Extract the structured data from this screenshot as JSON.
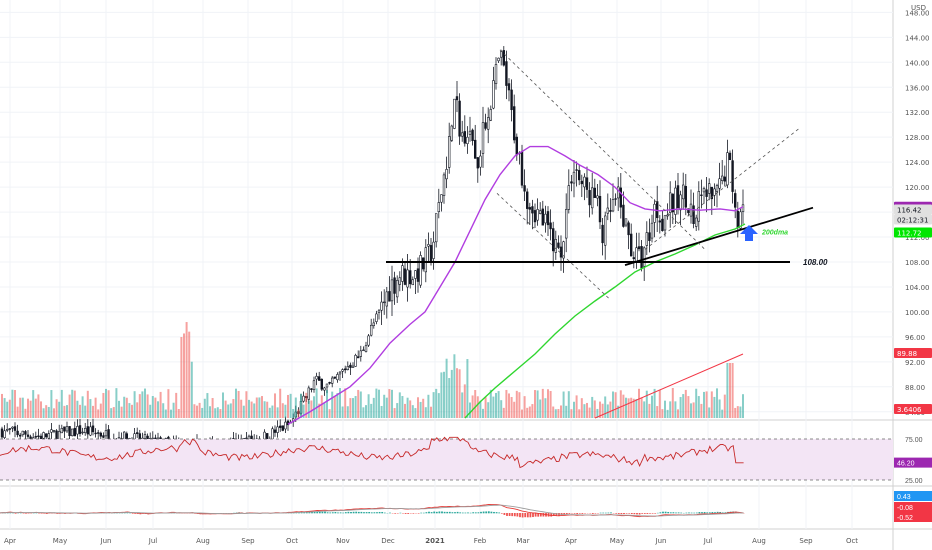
{
  "currency": "USD",
  "price_ticks": [
    "148.00",
    "144.00",
    "140.00",
    "136.00",
    "132.00",
    "128.00",
    "124.00",
    "120.00",
    "116.00",
    "112.00",
    "108.00",
    "104.00",
    "100.00",
    "96.00",
    "92.00",
    "88.00",
    "84.00"
  ],
  "time_ticks": [
    "Apr",
    "May",
    "Jun",
    "Jul",
    "Aug",
    "Sep",
    "Oct",
    "Nov",
    "Dec",
    "2021",
    "Feb",
    "Mar",
    "Apr",
    "May",
    "Jun",
    "Jul",
    "Aug",
    "Sep",
    "Oct"
  ],
  "annotations": {
    "support_level": "108.00",
    "ma_label": "200dma"
  },
  "price_badges": [
    {
      "label": "116.85",
      "color": "#9c27b0"
    },
    {
      "label": "116.42",
      "color": "#e0e0e0"
    },
    {
      "label": "02:12:31",
      "color": "#e0e0e0"
    },
    {
      "label": "112.72",
      "color": "#00e600"
    },
    {
      "label": "89.88",
      "color": "#f23645"
    },
    {
      "label": "3.6406",
      "color": "#f23645"
    }
  ],
  "rsi": {
    "ticks": [
      "75.00",
      "25.00"
    ],
    "value": "46.20"
  },
  "macd": {
    "values": [
      "0.43",
      "-0.08",
      "-0.52"
    ]
  },
  "colors": {
    "up": "#26a69a",
    "down": "#ef5350",
    "ma_purple": "#b13de0",
    "ma_green": "#2fd62f",
    "rsi_line": "#c62828",
    "rsi_band": "#f3e5f5"
  },
  "chart_data": {
    "type": "candlestick",
    "y_range": [
      82,
      149
    ],
    "support_price": 108.0,
    "last_price": 116.42,
    "ma_value_labels": {
      "purple_ma": 116.85,
      "green_ma_200d": 112.72
    },
    "months": [
      "Apr",
      "May",
      "Jun",
      "Jul",
      "Aug",
      "Sep",
      "Oct",
      "Nov",
      "Dec",
      "2021",
      "Feb",
      "Mar",
      "Apr",
      "May",
      "Jun",
      "Jul"
    ],
    "approx_monthly_close": [
      80,
      81,
      80,
      79,
      78,
      79,
      82,
      92,
      104,
      110,
      140,
      117,
      113,
      109,
      117,
      116
    ],
    "key_points": [
      {
        "date": "Feb 2021",
        "price": 142.0,
        "note": "peak"
      },
      {
        "date": "Mar 2021",
        "price": 108.0,
        "note": "low"
      },
      {
        "date": "May 2021",
        "price": 107.7,
        "note": "low"
      },
      {
        "date": "Jul 2021",
        "price": 125.5,
        "note": "high"
      }
    ],
    "rsi_last": 46.2,
    "rsi_levels": [
      75,
      25
    ],
    "macd_last": [
      0.43,
      -0.08,
      -0.52
    ]
  }
}
